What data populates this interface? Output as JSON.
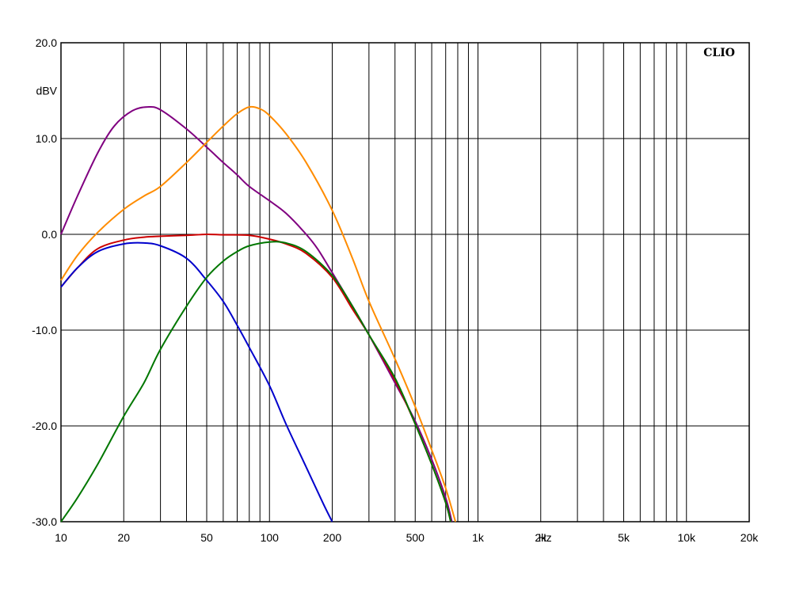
{
  "chart_data": {
    "type": "line",
    "brand": "CLIO",
    "ylabel": "dBV",
    "x_unit_label": "Hz",
    "x_scale": "log",
    "xlim": [
      10,
      20000
    ],
    "ylim": [
      -30,
      20
    ],
    "grid": true,
    "y_ticks": [
      {
        "value": 20,
        "label": "20.0"
      },
      {
        "value": 10,
        "label": "10.0"
      },
      {
        "value": 0,
        "label": "0.0"
      },
      {
        "value": -10,
        "label": "-10.0"
      },
      {
        "value": -20,
        "label": "-20.0"
      },
      {
        "value": -30,
        "label": "-30.0"
      }
    ],
    "x_tick_labels": [
      {
        "value": 10,
        "label": "10"
      },
      {
        "value": 20,
        "label": "20"
      },
      {
        "value": 50,
        "label": "50"
      },
      {
        "value": 100,
        "label": "100"
      },
      {
        "value": 200,
        "label": "200"
      },
      {
        "value": 500,
        "label": "500"
      },
      {
        "value": 1000,
        "label": "1k"
      },
      {
        "value": 2000,
        "label": "2k"
      },
      {
        "value": 5000,
        "label": "5k"
      },
      {
        "value": 10000,
        "label": "10k"
      },
      {
        "value": 20000,
        "label": "20k"
      }
    ],
    "x_gridlines": [
      20,
      30,
      40,
      50,
      60,
      70,
      80,
      90,
      100,
      200,
      300,
      400,
      500,
      600,
      700,
      800,
      900,
      1000,
      2000,
      3000,
      4000,
      5000,
      6000,
      7000,
      8000,
      9000,
      10000,
      20000
    ],
    "series": [
      {
        "color": "#800080",
        "points": [
          [
            10,
            0.0
          ],
          [
            12,
            4.0
          ],
          [
            15,
            8.5
          ],
          [
            18,
            11.3
          ],
          [
            22,
            12.9
          ],
          [
            26,
            13.3
          ],
          [
            30,
            13.0
          ],
          [
            40,
            11.0
          ],
          [
            50,
            9.1
          ],
          [
            60,
            7.5
          ],
          [
            70,
            6.2
          ],
          [
            80,
            5.0
          ],
          [
            100,
            3.5
          ],
          [
            120,
            2.2
          ],
          [
            150,
            0.0
          ],
          [
            170,
            -1.5
          ],
          [
            200,
            -4.0
          ],
          [
            250,
            -7.5
          ],
          [
            300,
            -10.5
          ],
          [
            400,
            -15.5
          ],
          [
            500,
            -19.5
          ],
          [
            600,
            -23.5
          ],
          [
            700,
            -27.5
          ],
          [
            750,
            -30.0
          ]
        ]
      },
      {
        "color": "#ff8c00",
        "points": [
          [
            10,
            -4.8
          ],
          [
            12,
            -2.2
          ],
          [
            15,
            0.2
          ],
          [
            20,
            2.6
          ],
          [
            25,
            4.0
          ],
          [
            30,
            5.0
          ],
          [
            40,
            7.5
          ],
          [
            50,
            9.6
          ],
          [
            60,
            11.3
          ],
          [
            70,
            12.6
          ],
          [
            80,
            13.3
          ],
          [
            90,
            13.1
          ],
          [
            100,
            12.4
          ],
          [
            120,
            10.5
          ],
          [
            150,
            7.5
          ],
          [
            200,
            2.5
          ],
          [
            250,
            -2.5
          ],
          [
            300,
            -7.0
          ],
          [
            400,
            -13.0
          ],
          [
            500,
            -18.0
          ],
          [
            600,
            -22.5
          ],
          [
            700,
            -26.5
          ],
          [
            780,
            -30.0
          ]
        ]
      },
      {
        "color": "#cc0000",
        "points": [
          [
            10,
            -5.5
          ],
          [
            12,
            -3.5
          ],
          [
            15,
            -1.5
          ],
          [
            20,
            -0.6
          ],
          [
            25,
            -0.3
          ],
          [
            30,
            -0.2
          ],
          [
            40,
            -0.1
          ],
          [
            50,
            0.0
          ],
          [
            60,
            -0.05
          ],
          [
            80,
            -0.1
          ],
          [
            100,
            -0.5
          ],
          [
            120,
            -1.0
          ],
          [
            150,
            -2.0
          ],
          [
            200,
            -4.5
          ],
          [
            250,
            -7.8
          ],
          [
            300,
            -10.5
          ],
          [
            400,
            -15.2
          ],
          [
            500,
            -19.8
          ],
          [
            600,
            -24.0
          ],
          [
            700,
            -28.0
          ],
          [
            740,
            -30.0
          ]
        ]
      },
      {
        "color": "#0000cc",
        "points": [
          [
            10,
            -5.5
          ],
          [
            12,
            -3.5
          ],
          [
            15,
            -1.8
          ],
          [
            20,
            -1.0
          ],
          [
            25,
            -0.9
          ],
          [
            30,
            -1.2
          ],
          [
            40,
            -2.5
          ],
          [
            50,
            -4.8
          ],
          [
            60,
            -7.0
          ],
          [
            70,
            -9.5
          ],
          [
            80,
            -11.8
          ],
          [
            100,
            -15.8
          ],
          [
            120,
            -19.8
          ],
          [
            150,
            -24.3
          ],
          [
            180,
            -28.0
          ],
          [
            200,
            -30.0
          ]
        ]
      },
      {
        "color": "#007700",
        "points": [
          [
            10,
            -30.0
          ],
          [
            12,
            -27.5
          ],
          [
            15,
            -24.0
          ],
          [
            20,
            -19.0
          ],
          [
            25,
            -15.5
          ],
          [
            30,
            -12.0
          ],
          [
            40,
            -7.5
          ],
          [
            50,
            -4.5
          ],
          [
            60,
            -2.8
          ],
          [
            70,
            -1.8
          ],
          [
            80,
            -1.2
          ],
          [
            100,
            -0.8
          ],
          [
            120,
            -0.9
          ],
          [
            150,
            -1.8
          ],
          [
            200,
            -4.3
          ],
          [
            250,
            -7.5
          ],
          [
            300,
            -10.5
          ],
          [
            400,
            -15.0
          ],
          [
            500,
            -19.8
          ],
          [
            600,
            -24.0
          ],
          [
            700,
            -28.0
          ],
          [
            740,
            -30.0
          ]
        ]
      }
    ]
  }
}
